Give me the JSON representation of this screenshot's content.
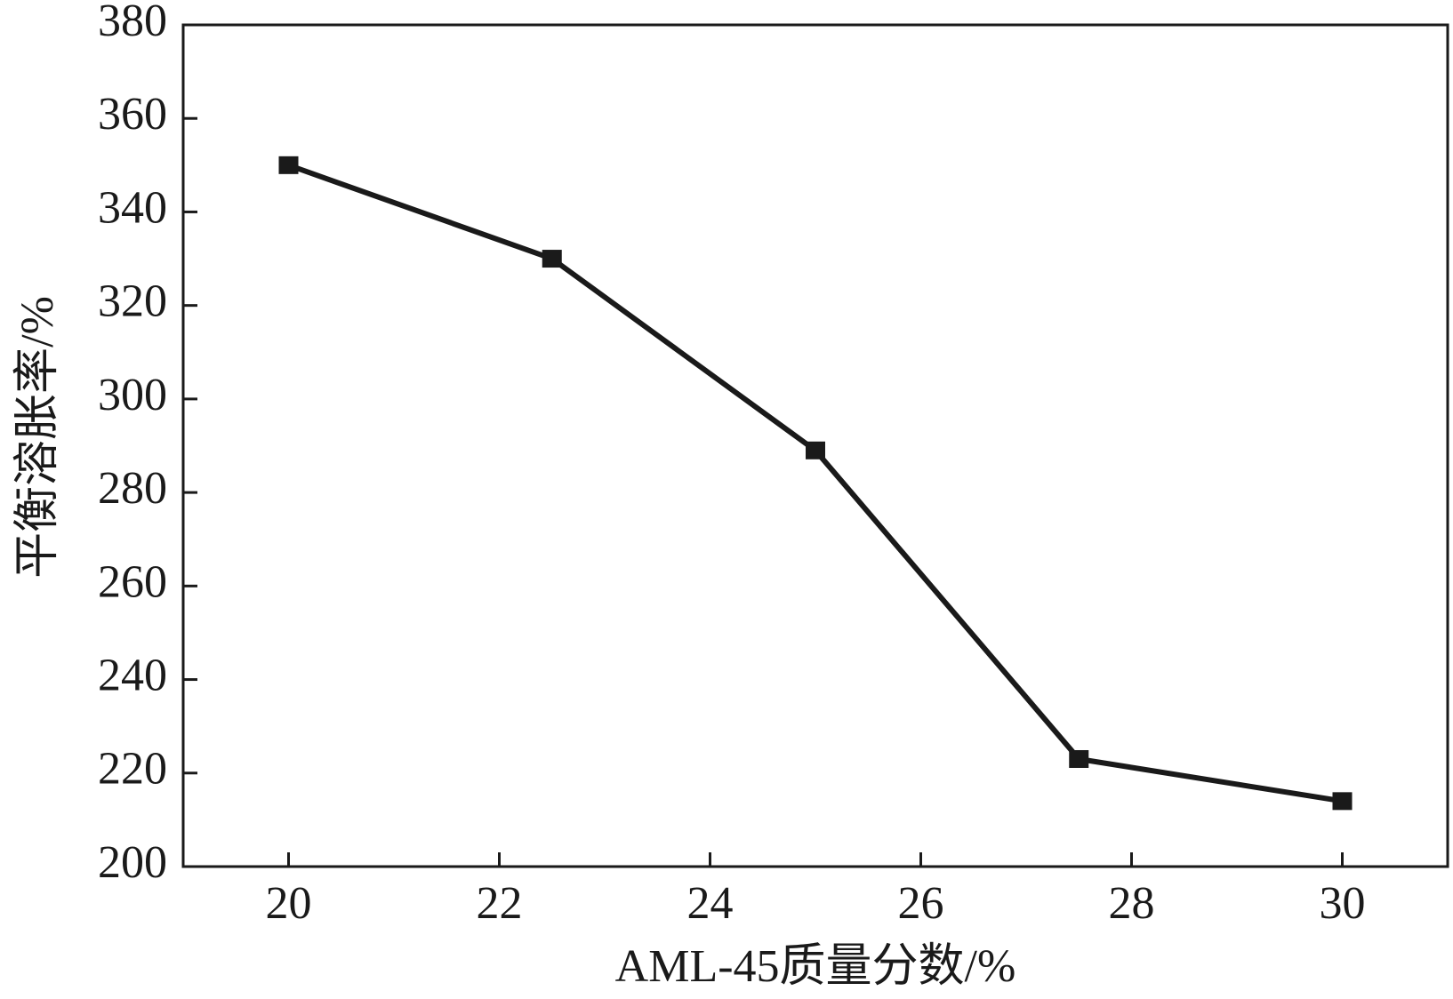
{
  "chart_data": {
    "type": "line",
    "x_label": "AML-45质量分数/%",
    "y_label": "平衡溶胀率/%",
    "x": [
      20,
      22.5,
      25,
      27.5,
      30
    ],
    "series": [
      {
        "color": "#1a1a1a",
        "values": [
          350,
          330,
          289,
          223,
          214
        ]
      }
    ],
    "xlim": [
      19,
      31
    ],
    "xticks": [
      20,
      22,
      24,
      26,
      28,
      30
    ],
    "ylim": [
      200,
      380
    ],
    "yticks": [
      200,
      220,
      240,
      260,
      280,
      300,
      320,
      340,
      360,
      380
    ]
  }
}
